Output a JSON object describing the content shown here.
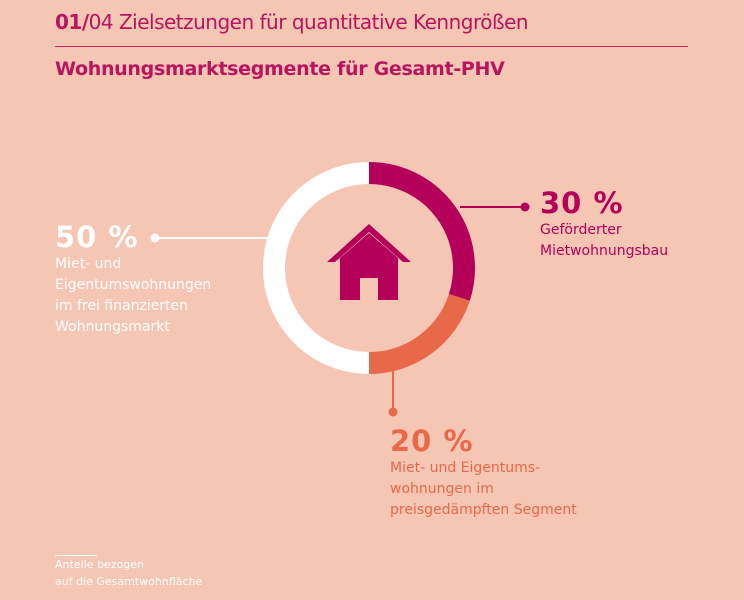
{
  "header": {
    "page_num": "01/",
    "page_total": "04",
    "kicker": " Zielsetzungen für quantitative Kenngrößen",
    "title": "Wohnungsmarktsegmente für Gesamt-PHV"
  },
  "chart_data": {
    "type": "pie",
    "title": "Wohnungsmarktsegmente für Gesamt-PHV",
    "center_icon": "house-icon",
    "segments": [
      {
        "label": "30 %",
        "value": 30,
        "desc": [
          "Geförderter",
          "Mietwohnungsbau"
        ],
        "color": "#b5005a"
      },
      {
        "label": "20 %",
        "value": 20,
        "desc": [
          "Miet- und Eigentums-",
          "wohnungen im",
          "preisgedämpften Segment"
        ],
        "color": "#e8694a"
      },
      {
        "label": "50 %",
        "value": 50,
        "desc": [
          "Miet- und",
          "Eigentumswohnungen",
          "im frei finanzierten",
          "Wohnungsmarkt"
        ],
        "color": "#ffffff"
      }
    ]
  },
  "footnote": [
    "Anteile bezogen",
    "auf die Gesamtwohnfläche"
  ]
}
